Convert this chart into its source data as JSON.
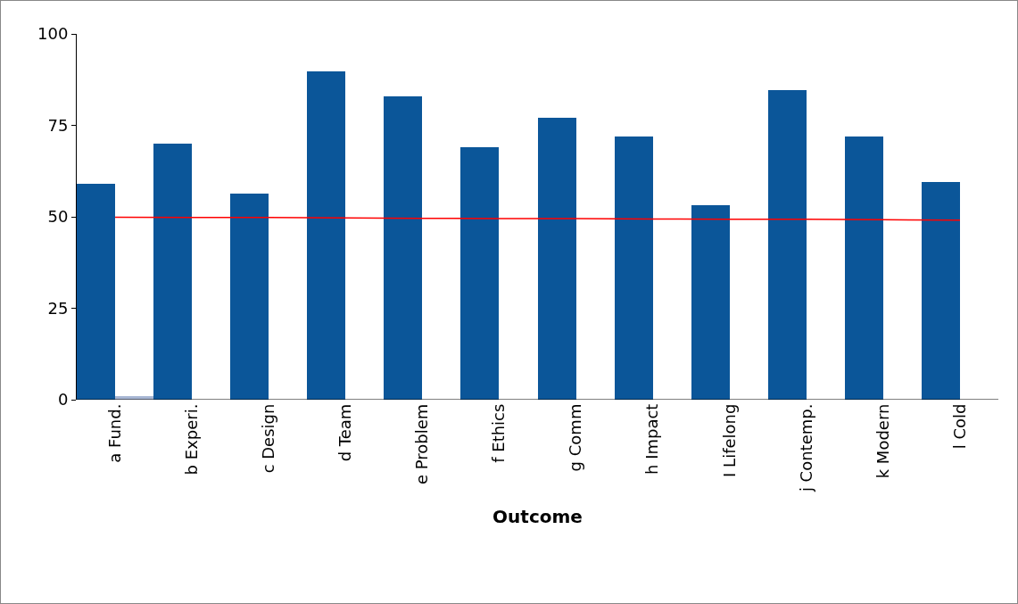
{
  "chart_data": {
    "type": "bar",
    "xlabel": "Outcome",
    "categories": [
      "a Fund.",
      "b Experi.",
      "c Design",
      "d Team",
      "e Problem",
      "f Ethics",
      "g Comm",
      "h Impact",
      "I Lifelong",
      "j Contemp.",
      "k Modern",
      "l Cold"
    ],
    "series": [
      {
        "color": "#0b5699",
        "values": [
          59,
          70,
          56.3,
          89.8,
          83,
          69,
          77,
          72,
          53.2,
          84.6,
          72,
          59.5
        ]
      },
      {
        "color": "#a7b6d3",
        "values": [
          1,
          null,
          null,
          null,
          null,
          null,
          null,
          null,
          null,
          null,
          null,
          null
        ]
      },
      {
        "type": "line",
        "color": "#ff0000",
        "values": [
          49.9,
          49.8,
          49.8,
          49.7,
          49.6,
          49.5,
          49.5,
          49.4,
          49.3,
          49.3,
          49.2,
          49.1
        ]
      }
    ],
    "ylim": [
      0,
      100
    ],
    "yticks": [
      0,
      25,
      50,
      75,
      100
    ],
    "grid": false
  }
}
